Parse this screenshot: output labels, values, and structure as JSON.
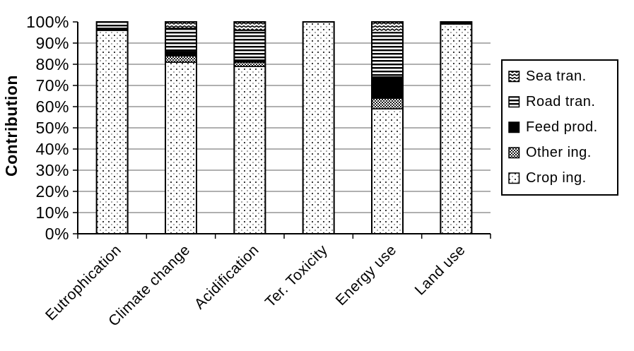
{
  "colors": {
    "foreground": "#000000",
    "background": "#ffffff",
    "gridline": "#808080"
  },
  "chart_data": {
    "type": "bar",
    "variant": "100-percent-stacked-vertical",
    "title": "",
    "xlabel": "",
    "ylabel": "Contribution",
    "ylim": [
      0,
      100
    ],
    "units": "percent",
    "grid": "horizontal",
    "legend_position": "right",
    "categories": [
      "Eutrophication",
      "Climate change",
      "Acidification",
      "Ter. Toxicity",
      "Energy use",
      "Land use"
    ],
    "y_tick_labels": [
      "0%",
      "10%",
      "20%",
      "30%",
      "40%",
      "50%",
      "60%",
      "70%",
      "80%",
      "90%",
      "100%"
    ],
    "series": [
      {
        "name": "Crop ing.",
        "pattern": "crop",
        "values": [
          96,
          81,
          79,
          100,
          59,
          99
        ]
      },
      {
        "name": "Other ing.",
        "pattern": "other",
        "values": [
          0,
          3,
          2,
          0,
          5,
          0
        ]
      },
      {
        "name": "Feed prod.",
        "pattern": "feed",
        "values": [
          1,
          2,
          1,
          0,
          10,
          1
        ]
      },
      {
        "name": "Road tran.",
        "pattern": "road",
        "values": [
          3,
          11,
          14,
          0,
          21,
          0
        ]
      },
      {
        "name": "Sea tran.",
        "pattern": "sea",
        "values": [
          0,
          3,
          4,
          0,
          5,
          0
        ]
      }
    ],
    "legend": [
      {
        "label": "Sea tran.",
        "pattern": "sea"
      },
      {
        "label": "Road tran.",
        "pattern": "road"
      },
      {
        "label": "Feed prod.",
        "pattern": "feed"
      },
      {
        "label": "Other ing.",
        "pattern": "other"
      },
      {
        "label": "Crop ing.",
        "pattern": "crop"
      }
    ]
  }
}
